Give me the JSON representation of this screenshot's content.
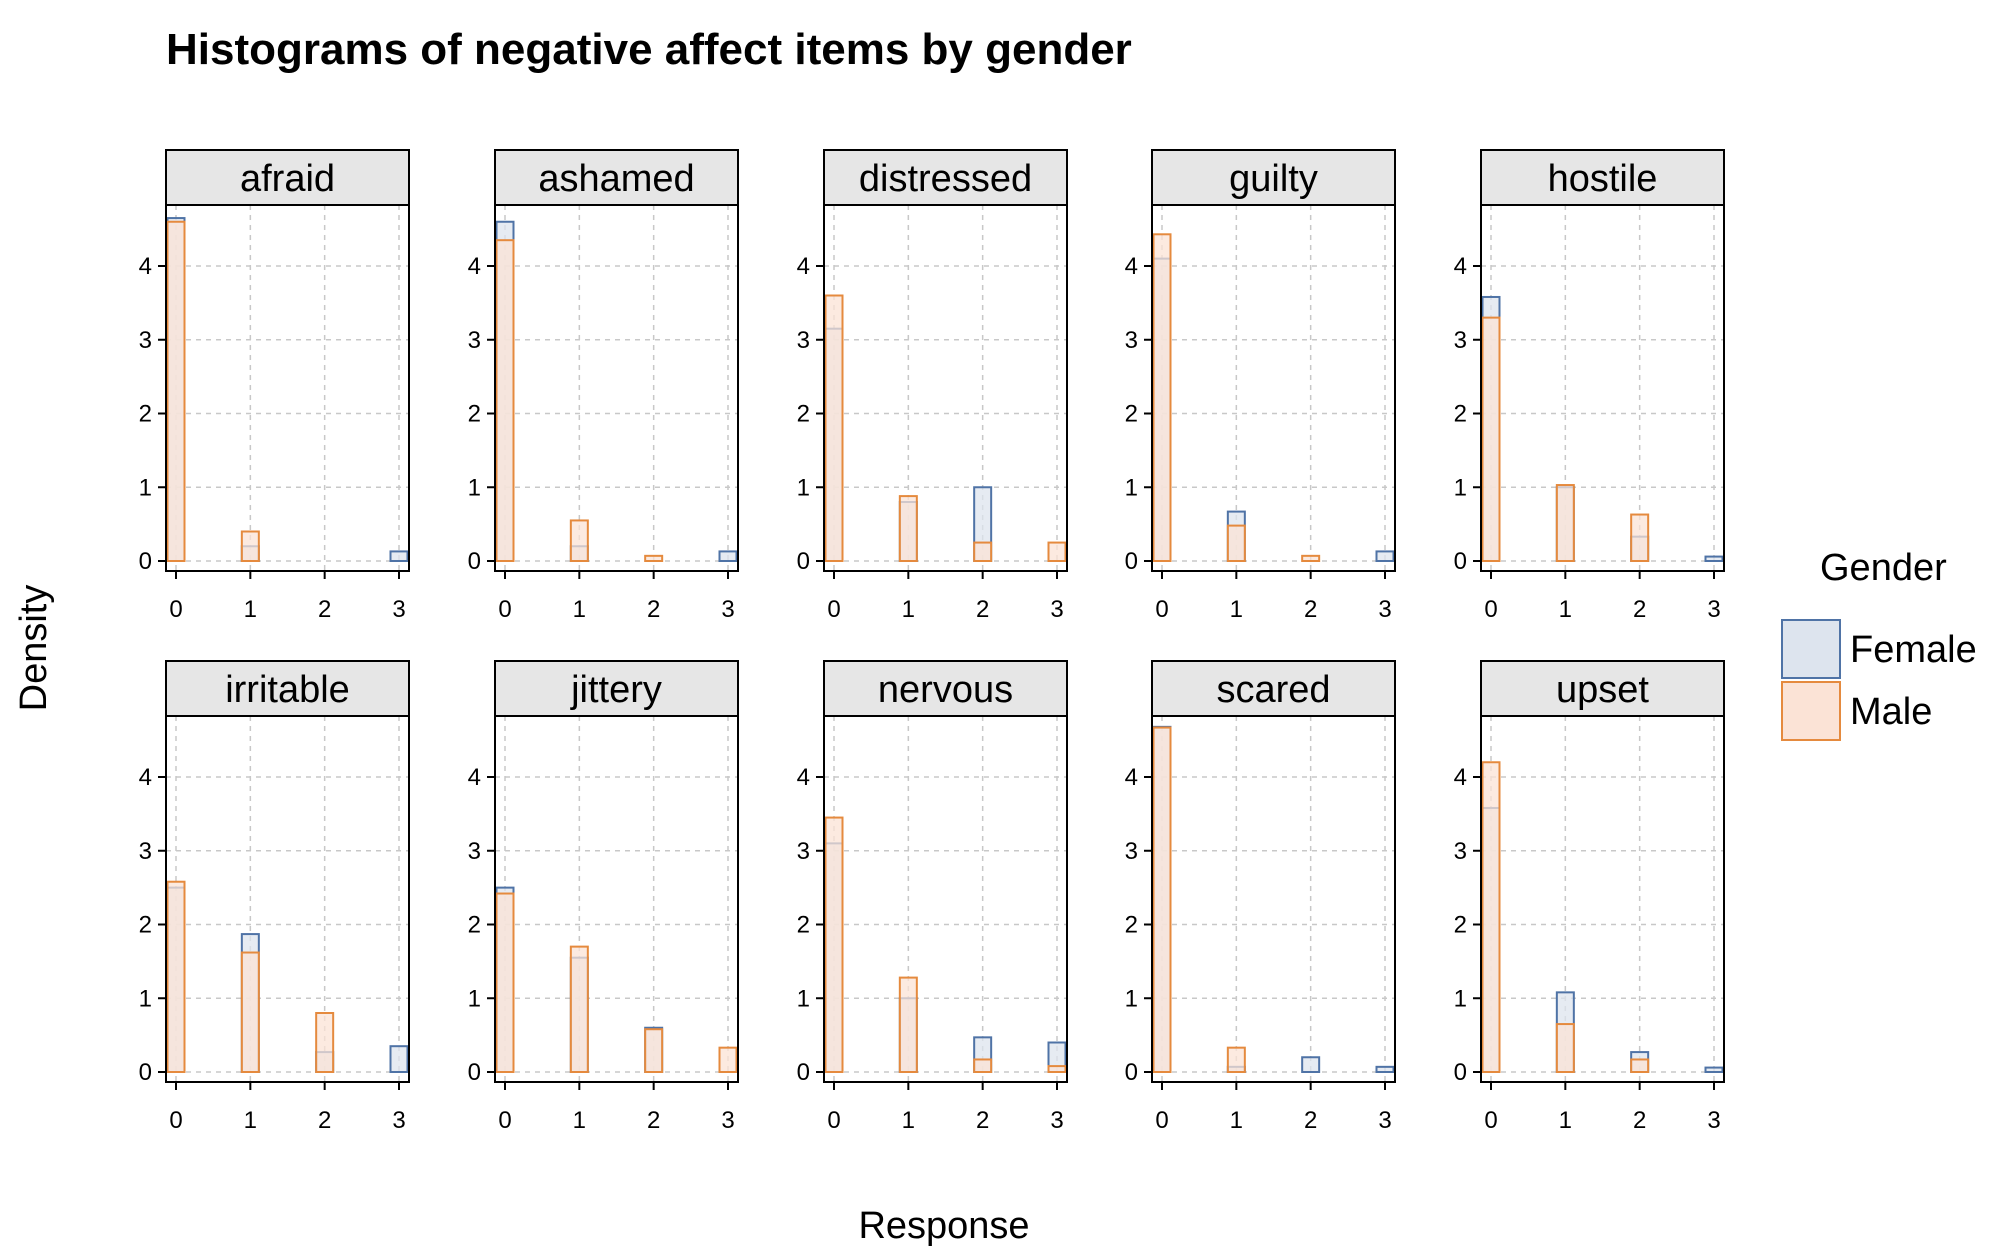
{
  "chart_data": {
    "type": "bar",
    "title": "Histograms of negative affect items by gender",
    "xlabel": "Response",
    "ylabel": "Density",
    "x_ticks": [
      0,
      1,
      2,
      3
    ],
    "y_ticks": [
      0,
      1,
      2,
      3,
      4
    ],
    "xlim": [
      0,
      3
    ],
    "ylim": [
      0,
      4.8
    ],
    "grid": true,
    "legend": {
      "title": "Gender",
      "position": "right",
      "entries": [
        {
          "name": "Female",
          "fill": "#dde4ee",
          "stroke": "#4f73a6"
        },
        {
          "name": "Male",
          "fill": "#fbe3d6",
          "stroke": "#e58a3e"
        }
      ]
    },
    "panels": [
      {
        "label": "afraid",
        "series": [
          {
            "name": "Female",
            "values": [
              4.65,
              0.2,
              0,
              0.13
            ]
          },
          {
            "name": "Male",
            "values": [
              4.6,
              0.4,
              0,
              0
            ]
          }
        ]
      },
      {
        "label": "ashamed",
        "series": [
          {
            "name": "Female",
            "values": [
              4.6,
              0.2,
              0,
              0.13
            ]
          },
          {
            "name": "Male",
            "values": [
              4.35,
              0.55,
              0.07,
              0
            ]
          }
        ]
      },
      {
        "label": "distressed",
        "series": [
          {
            "name": "Female",
            "values": [
              3.15,
              0.8,
              1.0,
              0
            ]
          },
          {
            "name": "Male",
            "values": [
              3.6,
              0.88,
              0.25,
              0.25
            ]
          }
        ]
      },
      {
        "label": "guilty",
        "series": [
          {
            "name": "Female",
            "values": [
              4.1,
              0.67,
              0,
              0.13
            ]
          },
          {
            "name": "Male",
            "values": [
              4.43,
              0.48,
              0.07,
              0
            ]
          }
        ]
      },
      {
        "label": "hostile",
        "series": [
          {
            "name": "Female",
            "values": [
              3.58,
              1.0,
              0.33,
              0.06
            ]
          },
          {
            "name": "Male",
            "values": [
              3.3,
              1.03,
              0.63,
              0
            ]
          }
        ]
      },
      {
        "label": "irritable",
        "series": [
          {
            "name": "Female",
            "values": [
              2.5,
              1.87,
              0.27,
              0.35
            ]
          },
          {
            "name": "Male",
            "values": [
              2.58,
              1.62,
              0.8,
              0
            ]
          }
        ]
      },
      {
        "label": "jittery",
        "series": [
          {
            "name": "Female",
            "values": [
              2.5,
              1.55,
              0.6,
              0
            ]
          },
          {
            "name": "Male",
            "values": [
              2.42,
              1.7,
              0.58,
              0.33
            ]
          }
        ]
      },
      {
        "label": "nervous",
        "series": [
          {
            "name": "Female",
            "values": [
              3.1,
              1.0,
              0.47,
              0.4
            ]
          },
          {
            "name": "Male",
            "values": [
              3.45,
              1.28,
              0.17,
              0.08
            ]
          }
        ]
      },
      {
        "label": "scared",
        "series": [
          {
            "name": "Female",
            "values": [
              4.68,
              0.07,
              0.2,
              0.07
            ]
          },
          {
            "name": "Male",
            "values": [
              4.67,
              0.33,
              0,
              0
            ]
          }
        ]
      },
      {
        "label": "upset",
        "series": [
          {
            "name": "Female",
            "values": [
              3.58,
              1.08,
              0.27,
              0.06
            ]
          },
          {
            "name": "Male",
            "values": [
              4.2,
              0.65,
              0.17,
              0
            ]
          }
        ]
      }
    ]
  }
}
